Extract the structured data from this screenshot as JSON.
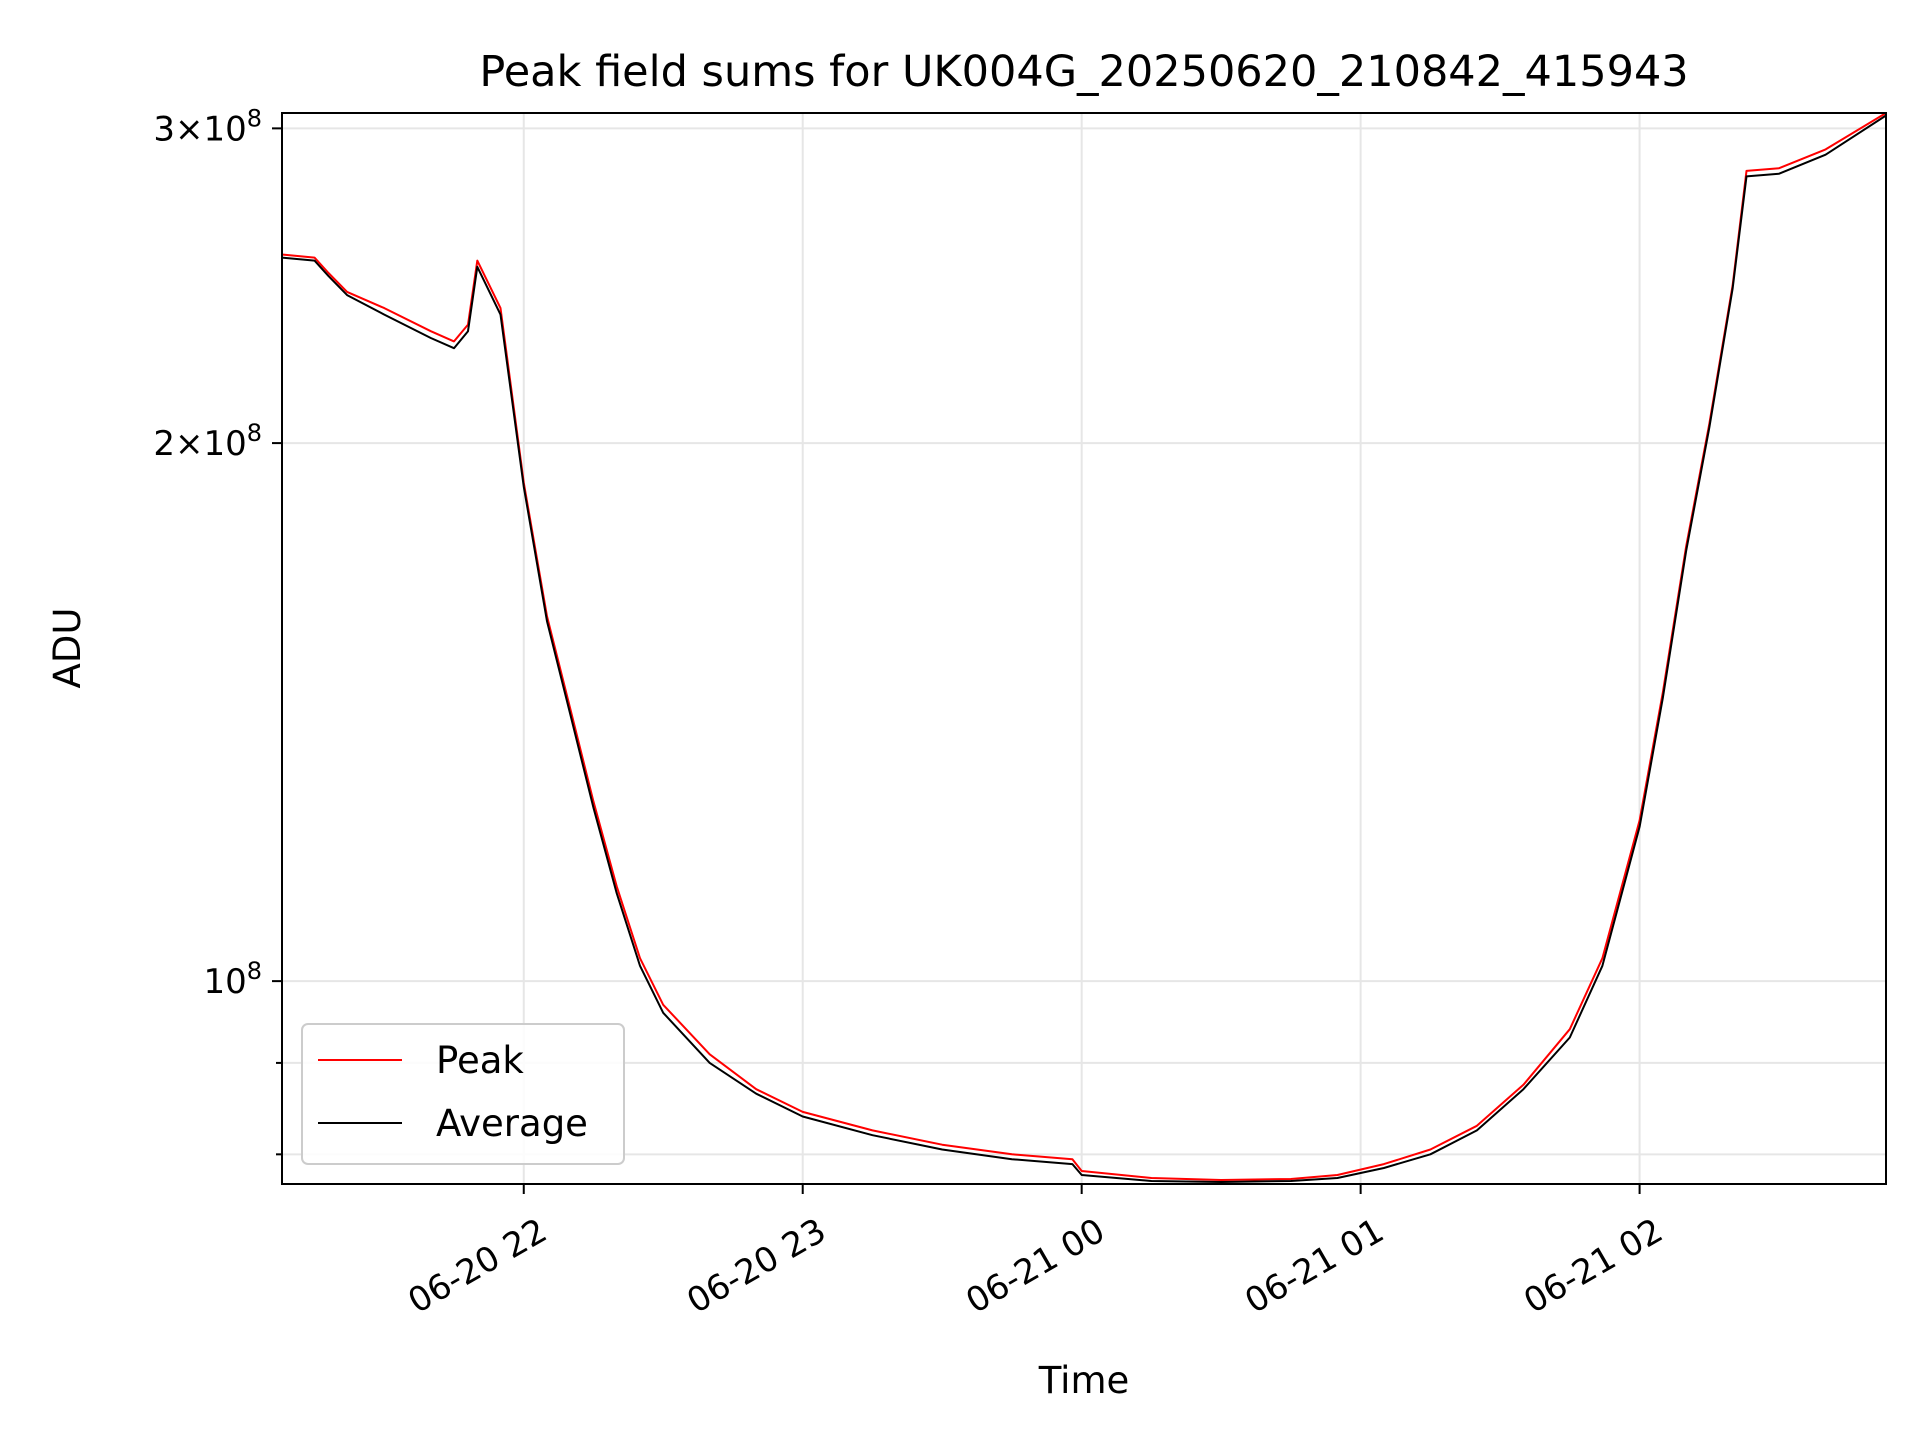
{
  "chart_data": {
    "type": "line",
    "title": "Peak field sums for UK004G_20250620_210842_415943",
    "xlabel": "Time",
    "ylabel": "ADU",
    "x_range": [
      "2025-06-20 21:08",
      "2025-06-21 02:53"
    ],
    "y_range": [
      77000000,
      306000000
    ],
    "y_scale": "log",
    "grid": true,
    "legend": "lower-left",
    "x_ticks": [
      {
        "label": "06-20 22",
        "value": "2025-06-20 22:00"
      },
      {
        "label": "06-20 23",
        "value": "2025-06-20 23:00"
      },
      {
        "label": "06-21 00",
        "value": "2025-06-21 00:00"
      },
      {
        "label": "06-21 01",
        "value": "2025-06-21 01:00"
      },
      {
        "label": "06-21 02",
        "value": "2025-06-21 02:00"
      }
    ],
    "y_ticks": [
      {
        "label": "3×10⁸",
        "value": 300000000,
        "mantissa": "3",
        "exponent": "8"
      },
      {
        "label": "2×10⁸",
        "value": 200000000,
        "mantissa": "2",
        "exponent": "8"
      },
      {
        "label": "10⁸",
        "value": 100000000,
        "mantissa": "",
        "exponent": "8"
      }
    ],
    "y_minor_ticks": [
      90000000,
      80000000
    ],
    "series": [
      {
        "name": "Peak",
        "color": "#ff0000",
        "x": [
          "2025-06-20 21:08",
          "2025-06-20 21:15",
          "2025-06-20 21:18",
          "2025-06-20 21:22",
          "2025-06-20 21:30",
          "2025-06-20 21:40",
          "2025-06-20 21:45",
          "2025-06-20 21:48",
          "2025-06-20 21:50",
          "2025-06-20 21:55",
          "2025-06-20 22:00",
          "2025-06-20 22:05",
          "2025-06-20 22:10",
          "2025-06-20 22:15",
          "2025-06-20 22:20",
          "2025-06-20 22:25",
          "2025-06-20 22:30",
          "2025-06-20 22:40",
          "2025-06-20 22:50",
          "2025-06-20 23:00",
          "2025-06-20 23:15",
          "2025-06-20 23:30",
          "2025-06-20 23:45",
          "2025-06-20 23:58",
          "2025-06-21 00:00",
          "2025-06-21 00:15",
          "2025-06-21 00:30",
          "2025-06-21 00:45",
          "2025-06-21 00:55",
          "2025-06-21 01:05",
          "2025-06-21 01:15",
          "2025-06-21 01:25",
          "2025-06-21 01:35",
          "2025-06-21 01:45",
          "2025-06-21 01:52",
          "2025-06-21 02:00",
          "2025-06-21 02:05",
          "2025-06-21 02:10",
          "2025-06-21 02:15",
          "2025-06-21 02:20",
          "2025-06-21 02:23",
          "2025-06-21 02:30",
          "2025-06-21 02:40",
          "2025-06-21 02:53"
        ],
        "values": [
          255000000,
          254000000,
          249000000,
          243000000,
          238000000,
          231000000,
          228000000,
          233000000,
          253000000,
          238000000,
          190000000,
          160000000,
          142000000,
          126000000,
          113000000,
          103000000,
          97000000,
          91000000,
          87000000,
          84500000,
          82500000,
          81000000,
          80000000,
          79500000,
          78300000,
          77600000,
          77400000,
          77500000,
          77900000,
          79000000,
          80500000,
          83000000,
          87500000,
          94000000,
          103000000,
          123000000,
          145000000,
          175000000,
          205000000,
          245000000,
          284000000,
          285000000,
          292000000,
          306000000
        ]
      },
      {
        "name": "Average",
        "color": "#000000",
        "x": [
          "2025-06-20 21:08",
          "2025-06-20 21:15",
          "2025-06-20 21:18",
          "2025-06-20 21:22",
          "2025-06-20 21:30",
          "2025-06-20 21:40",
          "2025-06-20 21:45",
          "2025-06-20 21:48",
          "2025-06-20 21:50",
          "2025-06-20 21:55",
          "2025-06-20 22:00",
          "2025-06-20 22:05",
          "2025-06-20 22:10",
          "2025-06-20 22:15",
          "2025-06-20 22:20",
          "2025-06-20 22:25",
          "2025-06-20 22:30",
          "2025-06-20 22:40",
          "2025-06-20 22:50",
          "2025-06-20 23:00",
          "2025-06-20 23:15",
          "2025-06-20 23:30",
          "2025-06-20 23:45",
          "2025-06-20 23:58",
          "2025-06-21 00:00",
          "2025-06-21 00:15",
          "2025-06-21 00:30",
          "2025-06-21 00:45",
          "2025-06-21 00:55",
          "2025-06-21 01:05",
          "2025-06-21 01:15",
          "2025-06-21 01:25",
          "2025-06-21 01:35",
          "2025-06-21 01:45",
          "2025-06-21 01:52",
          "2025-06-21 02:00",
          "2025-06-21 02:05",
          "2025-06-21 02:10",
          "2025-06-21 02:15",
          "2025-06-21 02:20",
          "2025-06-21 02:23",
          "2025-06-21 02:30",
          "2025-06-21 02:40",
          "2025-06-21 02:53"
        ],
        "values": [
          254000000,
          253000000,
          248000000,
          242000000,
          236000000,
          229000000,
          226000000,
          231000000,
          251000000,
          236000000,
          189000000,
          159000000,
          141000000,
          125000000,
          112000000,
          102000000,
          96000000,
          90000000,
          86500000,
          84000000,
          82000000,
          80500000,
          79500000,
          79000000,
          77900000,
          77300000,
          77200000,
          77300000,
          77600000,
          78600000,
          80000000,
          82500000,
          87000000,
          93000000,
          102000000,
          122000000,
          144000000,
          174000000,
          204000000,
          244000000,
          282000000,
          283000000,
          290000000,
          305000000
        ]
      }
    ]
  }
}
